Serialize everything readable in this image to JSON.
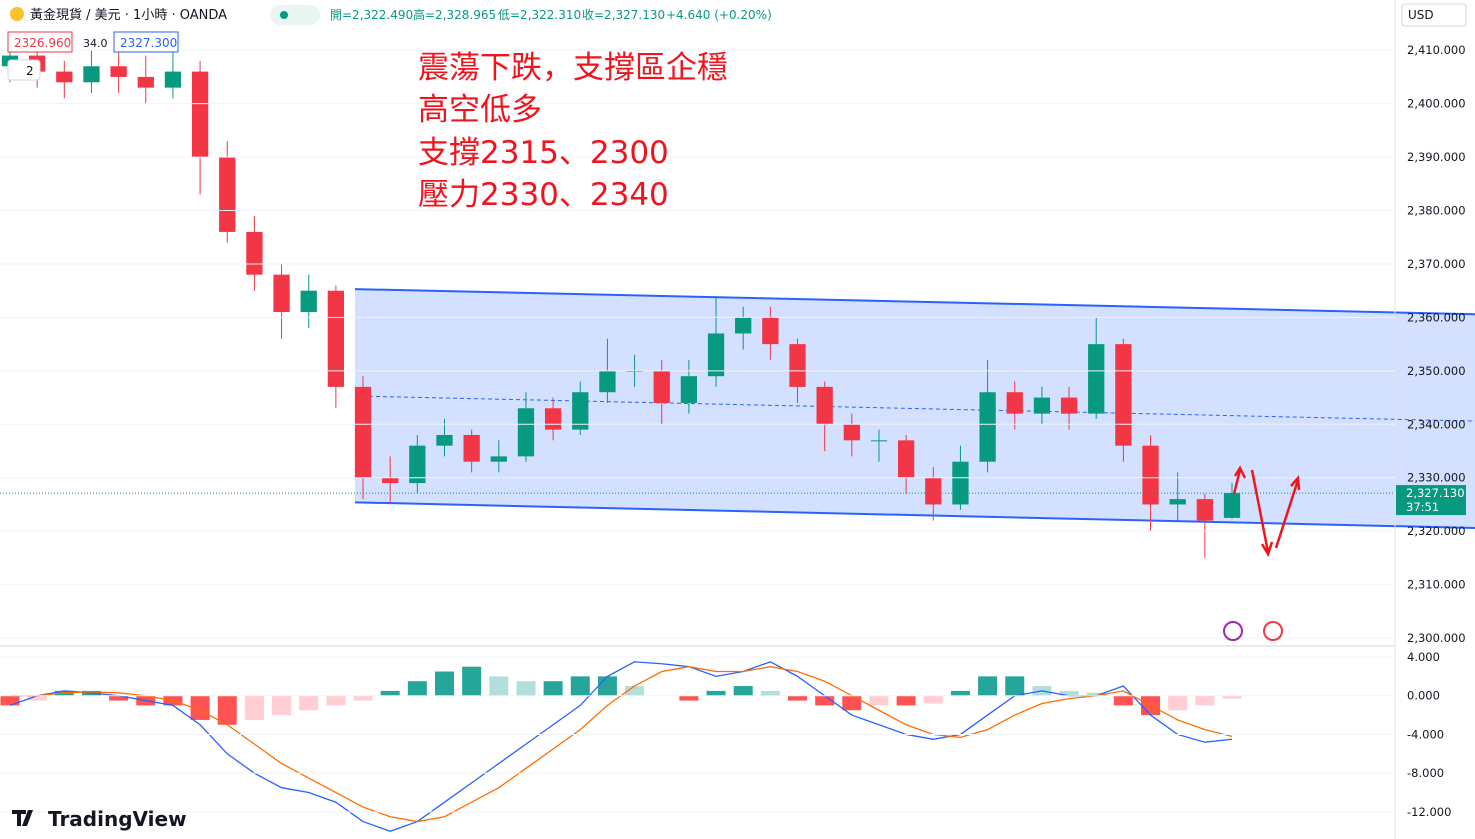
{
  "header": {
    "symbol": "黃金現貨 / 美元 · 1小時 · OANDA",
    "open": "開=2,322.490",
    "high": "高=2,328.965",
    "low": "低=2,322.310",
    "close": "收=2,327.130",
    "change": "+4.640 (+0.20%)",
    "bid": "2326.960",
    "spread": "34.0",
    "ask": "2327.300",
    "indicators": "2",
    "currency": "USD"
  },
  "annotations": [
    "震蕩下跌，支撐區企穩",
    "高空低多",
    "支撐2315、2300",
    "壓力2330、2340"
  ],
  "footer": {
    "brand": "TradingView"
  },
  "chart_data": {
    "type": "candlestick",
    "up_color": "#089981",
    "down_color": "#f23645",
    "ylim": [
      2298.7,
      2419.4
    ],
    "yticks": [
      {
        "value": 2300,
        "label": "2,300.000"
      },
      {
        "value": 2310,
        "label": "2,310.000"
      },
      {
        "value": 2320,
        "label": "2,320.000"
      },
      {
        "value": 2330,
        "label": "2,330.000"
      },
      {
        "value": 2340,
        "label": "2,340.000"
      },
      {
        "value": 2350,
        "label": "2,350.000"
      },
      {
        "value": 2360,
        "label": "2,360.000"
      },
      {
        "value": 2370,
        "label": "2,370.000"
      },
      {
        "value": 2380,
        "label": "2,380.000"
      },
      {
        "value": 2390,
        "label": "2,390.000"
      },
      {
        "value": 2400,
        "label": "2,400.000"
      },
      {
        "value": 2410,
        "label": "2,410.000"
      }
    ],
    "last_price": {
      "value": 2327.13,
      "label": "2,327.130"
    },
    "countdown": "37:51",
    "channel": {
      "color": "#2962ff",
      "upper": [
        2365.3,
        2360.6
      ],
      "lower": [
        2325.4,
        2320.6
      ],
      "mid": [
        2345.3,
        2340.6
      ]
    },
    "candles": [
      [
        2407,
        2411,
        2404,
        2409
      ],
      [
        2409,
        2412,
        2403,
        2406
      ],
      [
        2406,
        2408,
        2401,
        2404
      ],
      [
        2404,
        2410,
        2402,
        2407
      ],
      [
        2407,
        2413,
        2402,
        2405
      ],
      [
        2405,
        2409,
        2400,
        2403
      ],
      [
        2403,
        2410,
        2401,
        2406
      ],
      [
        2406,
        2408,
        2383,
        2390
      ],
      [
        2390,
        2393,
        2374,
        2376
      ],
      [
        2376,
        2379,
        2365,
        2368
      ],
      [
        2368,
        2370,
        2356,
        2361
      ],
      [
        2361,
        2368,
        2358,
        2365
      ],
      [
        2365,
        2366,
        2343,
        2347
      ],
      [
        2347,
        2349,
        2326,
        2330
      ],
      [
        2330,
        2334,
        2325,
        2329
      ],
      [
        2329,
        2338,
        2327,
        2336
      ],
      [
        2336,
        2341,
        2334,
        2338
      ],
      [
        2338,
        2339,
        2331,
        2333
      ],
      [
        2333,
        2337,
        2331,
        2334
      ],
      [
        2334,
        2346,
        2333,
        2343
      ],
      [
        2343,
        2345,
        2337,
        2339
      ],
      [
        2339,
        2348,
        2338,
        2346
      ],
      [
        2346,
        2356,
        2344,
        2350
      ],
      [
        2350,
        2353,
        2347,
        2350
      ],
      [
        2350,
        2352,
        2340,
        2344
      ],
      [
        2344,
        2352,
        2342,
        2349
      ],
      [
        2349,
        2364,
        2347,
        2357
      ],
      [
        2357,
        2362,
        2354,
        2360
      ],
      [
        2360,
        2362,
        2352,
        2355
      ],
      [
        2355,
        2356,
        2344,
        2347
      ],
      [
        2347,
        2348,
        2335,
        2340
      ],
      [
        2340,
        2342,
        2334,
        2337
      ],
      [
        2337,
        2339,
        2333,
        2337
      ],
      [
        2337,
        2338,
        2327,
        2330
      ],
      [
        2330,
        2332,
        2322,
        2325
      ],
      [
        2325,
        2336,
        2324,
        2333
      ],
      [
        2333,
        2352,
        2331,
        2346
      ],
      [
        2346,
        2348,
        2339,
        2342
      ],
      [
        2342,
        2347,
        2340,
        2345
      ],
      [
        2345,
        2347,
        2339,
        2342
      ],
      [
        2342,
        2360,
        2341,
        2355
      ],
      [
        2355,
        2356,
        2333,
        2336
      ],
      [
        2336,
        2338,
        2320,
        2325
      ],
      [
        2325,
        2331,
        2322,
        2326
      ],
      [
        2326,
        2327,
        2315,
        2322
      ],
      [
        2322.49,
        2328.965,
        2322.31,
        2327.13
      ]
    ],
    "macd": {
      "ylim": [
        -14.8,
        4.93
      ],
      "yticks": [
        {
          "value": 4,
          "label": "4.000"
        },
        {
          "value": 0,
          "label": "0.000"
        },
        {
          "value": -4,
          "label": "-4.000"
        },
        {
          "value": -8,
          "label": "-8.000"
        },
        {
          "value": -12,
          "label": "-12.000"
        }
      ],
      "histogram": [
        -1,
        -0.5,
        0.5,
        0.5,
        -0.5,
        -1,
        -1,
        -2.5,
        -3,
        -2.5,
        -2,
        -1.5,
        -1,
        -0.5,
        0.5,
        1.5,
        2.5,
        3,
        2,
        1.5,
        1.5,
        2,
        2,
        1,
        0,
        -0.5,
        0.5,
        1,
        0.5,
        -0.5,
        -1,
        -1.5,
        -1,
        -1,
        -0.8,
        0.5,
        2,
        2,
        1,
        0.5,
        0.3,
        -1,
        -2,
        -1.5,
        -1,
        -0.3
      ],
      "macd_line": {
        "color": "#2962ff",
        "values": [
          -1,
          0,
          0.5,
          0.3,
          0,
          -0.5,
          -1,
          -3,
          -6,
          -8,
          -9.5,
          -10,
          -11,
          -13,
          -14,
          -13,
          -11,
          -9,
          -7,
          -5,
          -3,
          -1,
          2,
          3.5,
          3.3,
          3,
          2,
          2.5,
          3.5,
          2,
          0,
          -2,
          -3,
          -4,
          -4.5,
          -4,
          -2,
          0,
          0.5,
          0,
          0,
          1,
          -2,
          -4,
          -4.8,
          -4.5
        ]
      },
      "signal_line": {
        "color": "#ff6d00",
        "values": [
          0,
          0,
          0.3,
          0.4,
          0.3,
          0,
          -0.5,
          -1.5,
          -3,
          -5,
          -7,
          -8.5,
          -10,
          -11.5,
          -12.5,
          -13,
          -12.5,
          -11,
          -9.5,
          -7.5,
          -5.5,
          -3.5,
          -1,
          1,
          2.5,
          3,
          2.5,
          2.5,
          3,
          2.5,
          1.5,
          0,
          -1.5,
          -3,
          -4,
          -4.3,
          -3.5,
          -2,
          -0.8,
          -0.3,
          0,
          0.5,
          -1,
          -2.5,
          -3.5,
          -4.2
        ]
      }
    }
  }
}
